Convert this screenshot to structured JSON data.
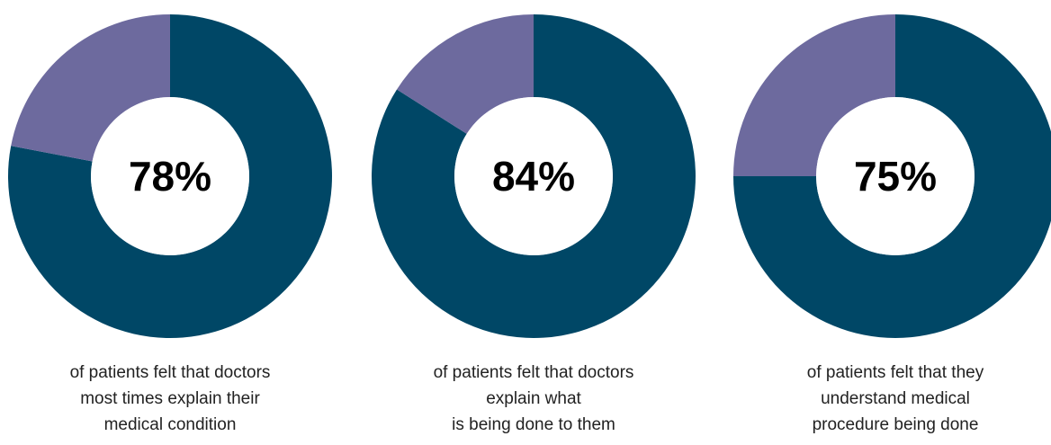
{
  "colors": {
    "primary": "#004766",
    "secondary": "#6d6a9e",
    "hole": "#ffffff"
  },
  "chart_data": [
    {
      "type": "pie",
      "variant": "donut",
      "value": 78,
      "remainder": 22,
      "label": "78%",
      "caption": [
        "of patients felt that doctors",
        "most times explain their",
        "medical condition"
      ]
    },
    {
      "type": "pie",
      "variant": "donut",
      "value": 84,
      "remainder": 16,
      "label": "84%",
      "caption": [
        "of patients felt that doctors",
        "explain what",
        "is being done to them"
      ]
    },
    {
      "type": "pie",
      "variant": "donut",
      "value": 75,
      "remainder": 25,
      "label": "75%",
      "caption": [
        "of patients felt that they",
        "understand medical",
        "procedure being done"
      ]
    }
  ]
}
